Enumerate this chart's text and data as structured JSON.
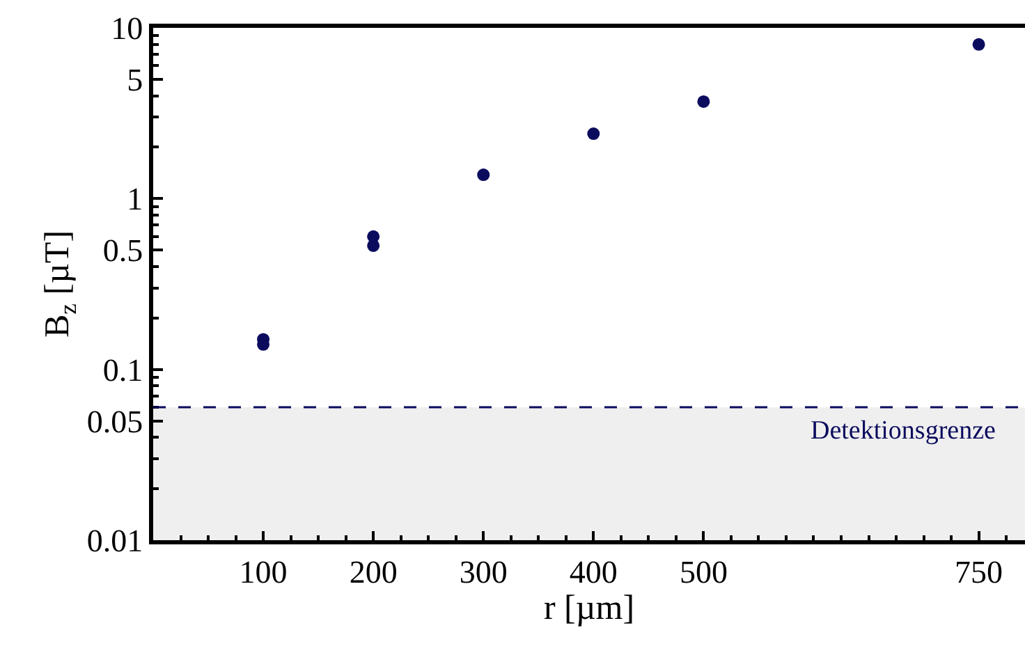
{
  "chart_data": {
    "type": "scatter",
    "xlabel": "r [µm]",
    "ylabel": "B$_{z}$ [µT]",
    "x": [
      100,
      100,
      200,
      200,
      300,
      400,
      500,
      750
    ],
    "series": [
      {
        "color": "#0b0b5e",
        "values": [
          0.14,
          0.15,
          0.53,
          0.6,
          1.38,
          2.4,
          3.7,
          8.0
        ]
      }
    ],
    "xlim": [
      0,
      792
    ],
    "xticks": [
      100,
      200,
      300,
      400,
      500,
      750
    ],
    "ylim": [
      0.01,
      10
    ],
    "yticks": [
      0.01,
      0.05,
      0.1,
      0.5,
      1,
      5,
      10
    ],
    "log": "y",
    "marker": "circle",
    "grid": false,
    "ref_lines": [
      {
        "axis": "y",
        "value": 0.06,
        "label": "Detektionsgrenze",
        "color": "#0b0b5e",
        "line_style": "dashed"
      }
    ],
    "bands": [
      {
        "axis": "y",
        "from": 0.01,
        "to": 0.06,
        "color": "#efefef"
      }
    ]
  }
}
